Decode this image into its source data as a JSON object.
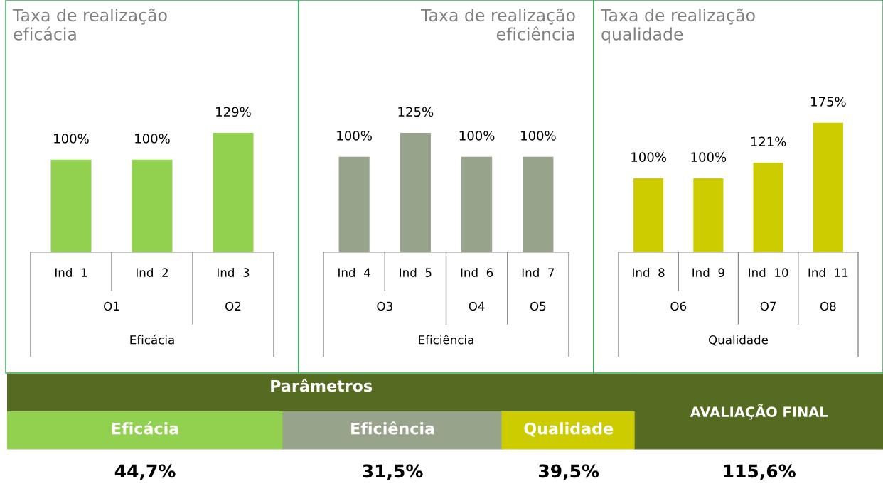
{
  "chart_data": [
    {
      "type": "bar",
      "title": "Taxa de realização\neficácia",
      "categories": [
        "Ind  1",
        "Ind  2",
        "Ind  3"
      ],
      "values": [
        100,
        100,
        129
      ],
      "value_labels": [
        "100%",
        "100%",
        "129%"
      ],
      "color": "#92d050",
      "annotations": [
        "O1",
        "O2"
      ],
      "xlabel": "Eficácia"
    },
    {
      "type": "bar",
      "title": "Taxa de realização\neficiência",
      "categories": [
        "Ind  4",
        "Ind  5",
        "Ind  6",
        "Ind  7"
      ],
      "values": [
        100,
        125,
        100,
        100
      ],
      "value_labels": [
        "100%",
        "125%",
        "100%",
        "100%"
      ],
      "color": "#97a38a",
      "annotations": [
        "O3",
        "O4",
        "O5"
      ],
      "xlabel": "Eficiência"
    },
    {
      "type": "bar",
      "title": "Taxa de realização\nqualidade",
      "categories": [
        "Ind  8",
        "Ind  9",
        "Ind  10",
        "Ind  11"
      ],
      "values": [
        100,
        100,
        121,
        175
      ],
      "value_labels": [
        "100%",
        "100%",
        "121%",
        "175%"
      ],
      "color": "#cccc00",
      "annotations": [
        "O6",
        "O7",
        "O8"
      ],
      "xlabel": "Qualidade"
    },
    {
      "type": "other",
      "title": "Parâmetros",
      "categories": [
        "Eficácia",
        "Eficiência",
        "Qualidade",
        "AVALIAÇÃO FINAL"
      ],
      "colors": [
        "#92d050",
        "#97a38a",
        "#cccc00",
        "#556b22"
      ],
      "annotations": [
        "44,7%",
        "31,5%",
        "39,5%",
        "115,6%"
      ]
    }
  ]
}
